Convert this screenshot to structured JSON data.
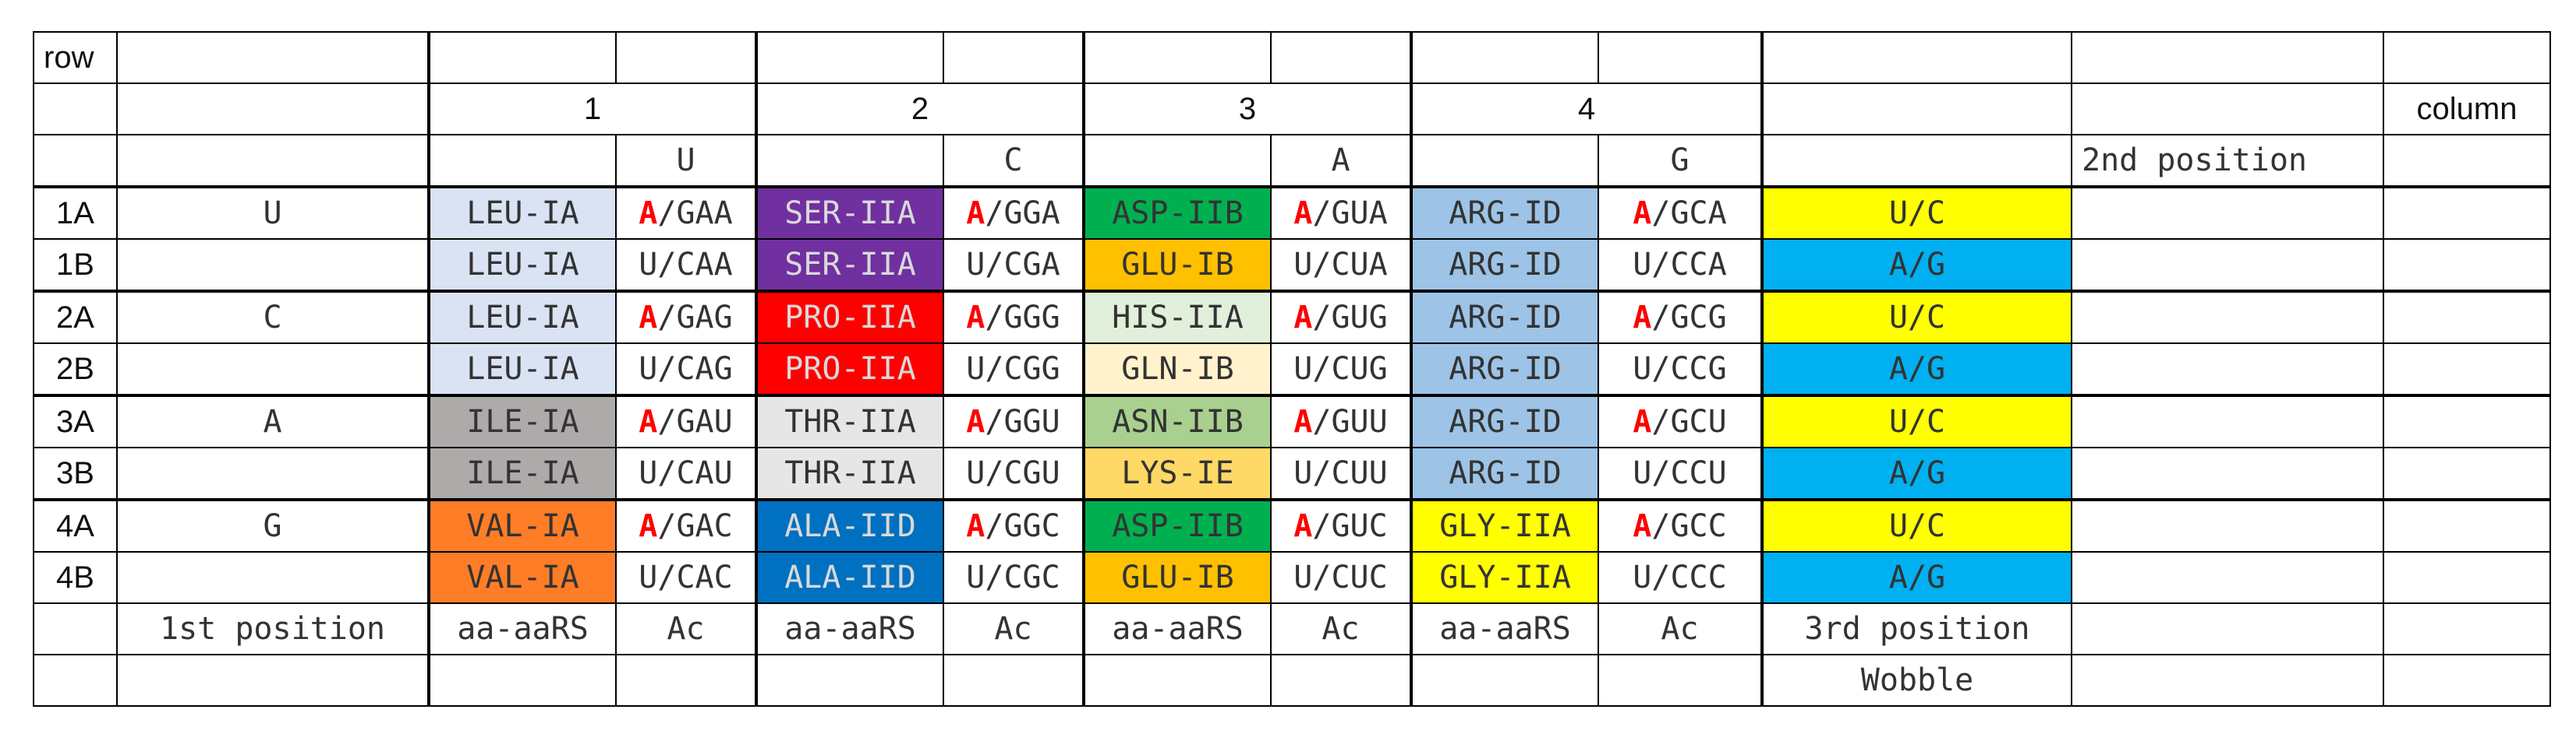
{
  "header": {
    "row_label": "row",
    "column_label": "column",
    "column_numbers": [
      "1",
      "2",
      "3",
      "4"
    ],
    "second_position_bases": [
      "U",
      "C",
      "A",
      "G"
    ],
    "second_position_label": "2nd position"
  },
  "colors": {
    "LEU-IA": "#dae3f3",
    "SER-IIA": "#7030a0",
    "PRO-IIA": "#ff0000",
    "ALA-IID": "#0070c0",
    "ASP-IIB": "#00b050",
    "GLU-IB": "#ffc000",
    "HIS-IIA": "#e2efda",
    "GLN-IB": "#fff2cc",
    "ASN-IIB": "#a9d08e",
    "LYS-IE": "#ffd966",
    "ARG-ID": "#9dc3e6",
    "GLY-IIA": "#ffff00",
    "ILE-IA": "#aeaaaa",
    "THR-IIA": "#e7e6e6",
    "VAL-IA": "#ff7d26",
    "wobble_UC": "#ffff00",
    "wobble_AG": "#00b0f0",
    "red_A": "#ff0000"
  },
  "rows": [
    {
      "row": "1A",
      "first": "U",
      "cells": [
        {
          "aa": "LEU-IA",
          "ac": "/GAA",
          "redA": true
        },
        {
          "aa": "SER-IIA",
          "ac": "/GGA",
          "redA": true
        },
        {
          "aa": "ASP-IIB",
          "ac": "/GUA",
          "redA": true
        },
        {
          "aa": "ARG-ID",
          "ac": "/GCA",
          "redA": true
        }
      ],
      "wobble": "U/C",
      "wobbleColor": "wobble_UC"
    },
    {
      "row": "1B",
      "first": "",
      "cells": [
        {
          "aa": "LEU-IA",
          "ac": "U/CAA"
        },
        {
          "aa": "SER-IIA",
          "ac": "U/CGA"
        },
        {
          "aa": "GLU-IB",
          "ac": "U/CUA"
        },
        {
          "aa": "ARG-ID",
          "ac": "U/CCA"
        }
      ],
      "wobble": "A/G",
      "wobbleColor": "wobble_AG"
    },
    {
      "row": "2A",
      "first": "C",
      "cells": [
        {
          "aa": "LEU-IA",
          "ac": "/GAG",
          "redA": true
        },
        {
          "aa": "PRO-IIA",
          "ac": "/GGG",
          "redA": true
        },
        {
          "aa": "HIS-IIA",
          "ac": "/GUG",
          "redA": true
        },
        {
          "aa": "ARG-ID",
          "ac": "/GCG",
          "redA": true
        }
      ],
      "wobble": "U/C",
      "wobbleColor": "wobble_UC"
    },
    {
      "row": "2B",
      "first": "",
      "cells": [
        {
          "aa": "LEU-IA",
          "ac": "U/CAG"
        },
        {
          "aa": "PRO-IIA",
          "ac": "U/CGG"
        },
        {
          "aa": "GLN-IB",
          "ac": "U/CUG"
        },
        {
          "aa": "ARG-ID",
          "ac": "U/CCG"
        }
      ],
      "wobble": "A/G",
      "wobbleColor": "wobble_AG"
    },
    {
      "row": "3A",
      "first": "A",
      "cells": [
        {
          "aa": "ILE-IA",
          "ac": "/GAU",
          "redA": true
        },
        {
          "aa": "THR-IIA",
          "ac": "/GGU",
          "redA": true
        },
        {
          "aa": "ASN-IIB",
          "ac": "/GUU",
          "redA": true
        },
        {
          "aa": "ARG-ID",
          "ac": "/GCU",
          "redA": true
        }
      ],
      "wobble": "U/C",
      "wobbleColor": "wobble_UC"
    },
    {
      "row": "3B",
      "first": "",
      "cells": [
        {
          "aa": "ILE-IA",
          "ac": "U/CAU"
        },
        {
          "aa": "THR-IIA",
          "ac": "U/CGU"
        },
        {
          "aa": "LYS-IE",
          "ac": "U/CUU"
        },
        {
          "aa": "ARG-ID",
          "ac": "U/CCU"
        }
      ],
      "wobble": "A/G",
      "wobbleColor": "wobble_AG"
    },
    {
      "row": "4A",
      "first": "G",
      "cells": [
        {
          "aa": "VAL-IA",
          "ac": "/GAC",
          "redA": true
        },
        {
          "aa": "ALA-IID",
          "ac": "/GGC",
          "redA": true
        },
        {
          "aa": "ASP-IIB",
          "ac": "/GUC",
          "redA": true
        },
        {
          "aa": "GLY-IIA",
          "ac": "/GCC",
          "redA": true
        }
      ],
      "wobble": "U/C",
      "wobbleColor": "wobble_UC"
    },
    {
      "row": "4B",
      "first": "",
      "cells": [
        {
          "aa": "VAL-IA",
          "ac": "U/CAC"
        },
        {
          "aa": "ALA-IID",
          "ac": "U/CGC"
        },
        {
          "aa": "GLU-IB",
          "ac": "U/CUC"
        },
        {
          "aa": "GLY-IIA",
          "ac": "U/CCC"
        }
      ],
      "wobble": "A/G",
      "wobbleColor": "wobble_AG"
    }
  ],
  "footer": {
    "first_position_label": "1st position",
    "aa_aaRS_label": "aa-aaRS",
    "ac_label": "Ac",
    "third_position_label": "3rd position",
    "wobble_label": "Wobble"
  },
  "red_A_letter": "A"
}
